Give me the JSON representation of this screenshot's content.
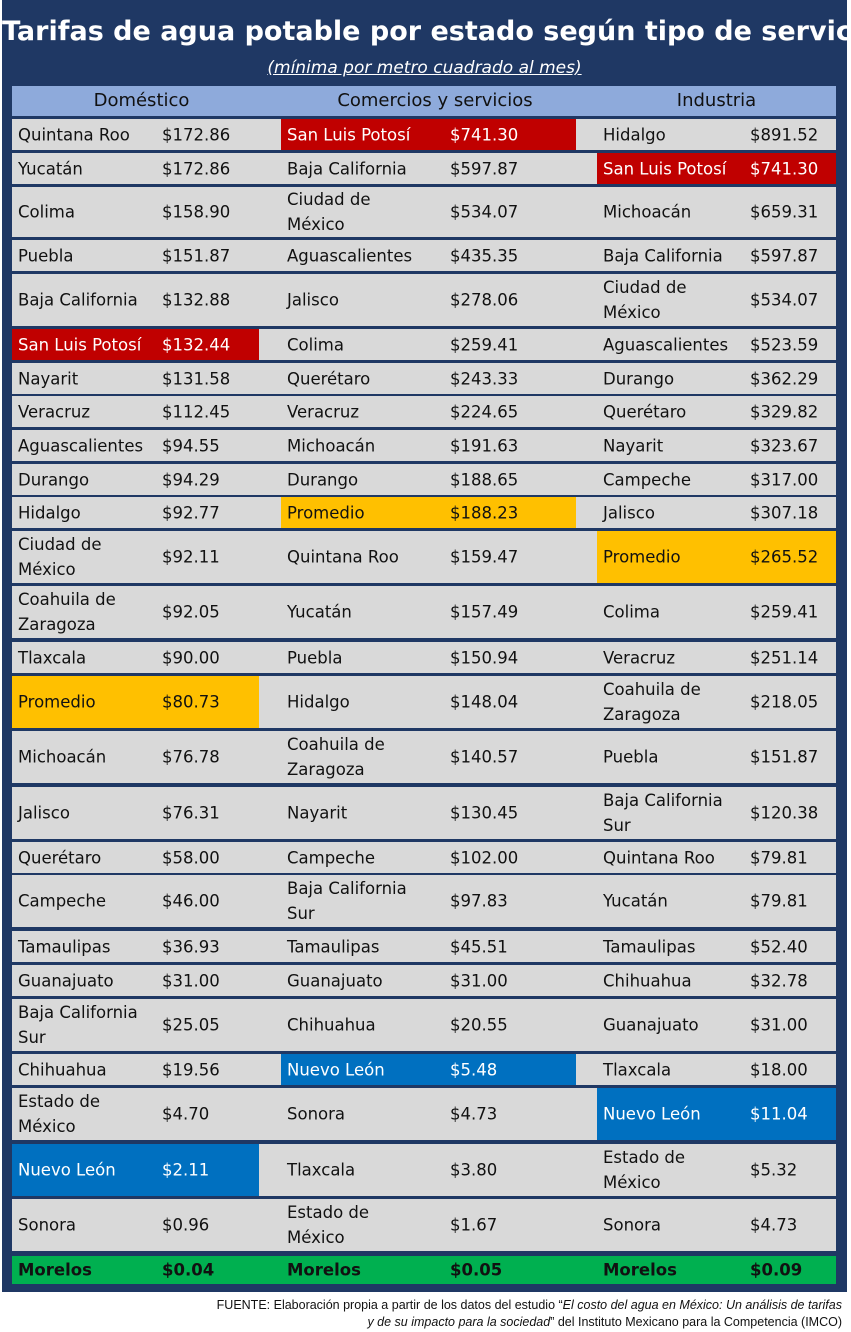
{
  "title": "Tarifas de agua potable por estado según tipo de servicio",
  "subtitle": "(mínima por metro cuadrado al mes)",
  "columns": [
    "Doméstico",
    "Comercios y servicios",
    "Industria"
  ],
  "colors": {
    "frame": "#1f3864",
    "header": "#8eaadb",
    "row": "#d9d9d9",
    "san_luis_potosi": "#c00000",
    "promedio": "#ffc000",
    "nuevo_leon": "#0070c0",
    "morelos": "#00b050"
  },
  "rows": [
    [
      {
        "name": "Quintana Roo",
        "value": "$172.86"
      },
      {
        "name": "San Luis Potosí",
        "value": "$741.30",
        "hl": "red"
      },
      {
        "name": "Hidalgo",
        "value": "$891.52"
      }
    ],
    [
      {
        "name": "Yucatán",
        "value": "$172.86"
      },
      {
        "name": "Baja California",
        "value": "$597.87"
      },
      {
        "name": "San Luis Potosí",
        "value": "$741.30",
        "hl": "red"
      }
    ],
    [
      {
        "name": "Colima",
        "value": "$158.90"
      },
      {
        "name": "Ciudad de México",
        "value": "$534.07"
      },
      {
        "name": "Michoacán",
        "value": "$659.31"
      }
    ],
    [
      {
        "name": "Puebla",
        "value": "$151.87"
      },
      {
        "name": "Aguascalientes",
        "value": "$435.35"
      },
      {
        "name": "Baja California",
        "value": "$597.87"
      }
    ],
    [
      {
        "name": "Baja California",
        "value": "$132.88"
      },
      {
        "name": "Jalisco",
        "value": "$278.06"
      },
      {
        "name": "Ciudad de México",
        "value": "$534.07"
      }
    ],
    [
      {
        "name": "San Luis Potosí",
        "value": "$132.44",
        "hl": "red"
      },
      {
        "name": "Colima",
        "value": "$259.41"
      },
      {
        "name": "Aguascalientes",
        "value": "$523.59"
      }
    ],
    [
      {
        "name": "Nayarit",
        "value": "$131.58"
      },
      {
        "name": "Querétaro",
        "value": "$243.33"
      },
      {
        "name": "Durango",
        "value": "$362.29"
      }
    ],
    [
      {
        "name": "Veracruz",
        "value": "$112.45"
      },
      {
        "name": "Veracruz",
        "value": "$224.65"
      },
      {
        "name": "Querétaro",
        "value": "$329.82"
      }
    ],
    [
      {
        "name": "Aguascalientes",
        "value": "$94.55"
      },
      {
        "name": "Michoacán",
        "value": "$191.63"
      },
      {
        "name": "Nayarit",
        "value": "$323.67"
      }
    ],
    [
      {
        "name": "Durango",
        "value": "$94.29"
      },
      {
        "name": "Durango",
        "value": "$188.65"
      },
      {
        "name": "Campeche",
        "value": "$317.00"
      }
    ],
    [
      {
        "name": "Hidalgo",
        "value": "$92.77"
      },
      {
        "name": "Promedio",
        "value": "$188.23",
        "hl": "prom"
      },
      {
        "name": "Jalisco",
        "value": "$307.18"
      }
    ],
    [
      {
        "name": "Ciudad de México",
        "value": "$92.11"
      },
      {
        "name": "Quintana Roo",
        "value": "$159.47"
      },
      {
        "name": "Promedio",
        "value": "$265.52",
        "hl": "prom"
      }
    ],
    [
      {
        "name": "Coahuila de Zaragoza",
        "value": "$92.05"
      },
      {
        "name": "Yucatán",
        "value": "$157.49"
      },
      {
        "name": "Colima",
        "value": "$259.41"
      }
    ],
    [
      {
        "name": "Tlaxcala",
        "value": "$90.00"
      },
      {
        "name": "Puebla",
        "value": "$150.94"
      },
      {
        "name": "Veracruz",
        "value": "$251.14"
      }
    ],
    [
      {
        "name": "Promedio",
        "value": "$80.73",
        "hl": "prom"
      },
      {
        "name": "Hidalgo",
        "value": "$148.04"
      },
      {
        "name": "Coahuila de Zaragoza",
        "value": "$218.05"
      }
    ],
    [
      {
        "name": "Michoacán",
        "value": "$76.78"
      },
      {
        "name": "Coahuila de Zaragoza",
        "value": "$140.57"
      },
      {
        "name": "Puebla",
        "value": "$151.87"
      }
    ],
    [
      {
        "name": "Jalisco",
        "value": "$76.31"
      },
      {
        "name": "Nayarit",
        "value": "$130.45"
      },
      {
        "name": "Baja California Sur",
        "value": "$120.38"
      }
    ],
    [
      {
        "name": "Querétaro",
        "value": "$58.00"
      },
      {
        "name": "Campeche",
        "value": "$102.00"
      },
      {
        "name": "Quintana Roo",
        "value": "$79.81"
      }
    ],
    [
      {
        "name": "Campeche",
        "value": "$46.00"
      },
      {
        "name": "Baja California Sur",
        "value": "$97.83"
      },
      {
        "name": "Yucatán",
        "value": "$79.81"
      }
    ],
    [
      {
        "name": "Tamaulipas",
        "value": "$36.93"
      },
      {
        "name": "Tamaulipas",
        "value": "$45.51"
      },
      {
        "name": "Tamaulipas",
        "value": "$52.40"
      }
    ],
    [
      {
        "name": "Guanajuato",
        "value": "$31.00"
      },
      {
        "name": "Guanajuato",
        "value": "$31.00"
      },
      {
        "name": "Chihuahua",
        "value": "$32.78"
      }
    ],
    [
      {
        "name": "Baja California Sur",
        "value": "$25.05"
      },
      {
        "name": "Chihuahua",
        "value": "$20.55"
      },
      {
        "name": "Guanajuato",
        "value": "$31.00"
      }
    ],
    [
      {
        "name": "Chihuahua",
        "value": "$19.56"
      },
      {
        "name": "Nuevo León",
        "value": "$5.48",
        "hl": "blue"
      },
      {
        "name": "Tlaxcala",
        "value": "$18.00"
      }
    ],
    [
      {
        "name": "Estado de México",
        "value": "$4.70"
      },
      {
        "name": "Sonora",
        "value": "$4.73"
      },
      {
        "name": "Nuevo León",
        "value": "$11.04",
        "hl": "blue"
      }
    ],
    [
      {
        "name": "Nuevo León",
        "value": "$2.11",
        "hl": "blue"
      },
      {
        "name": "Tlaxcala",
        "value": "$3.80"
      },
      {
        "name": "Estado de México",
        "value": "$5.32"
      }
    ],
    [
      {
        "name": "Sonora",
        "value": "$0.96"
      },
      {
        "name": "Estado de México",
        "value": "$1.67"
      },
      {
        "name": "Sonora",
        "value": "$4.73"
      }
    ],
    [
      {
        "name": "Morelos",
        "value": "$0.04"
      },
      {
        "name": "Morelos",
        "value": "$0.05"
      },
      {
        "name": "Morelos",
        "value": "$0.09"
      }
    ]
  ],
  "source": {
    "prefix": "FUENTE: Elaboración propia a partir de los datos del  estudio “",
    "study_line1": "El costo del agua en México: Un análisis de tarifas",
    "study_line2": "y de su impacto para la sociedad",
    "suffix": "” del Instituto Mexicano para la Competencia (IMCO)"
  }
}
